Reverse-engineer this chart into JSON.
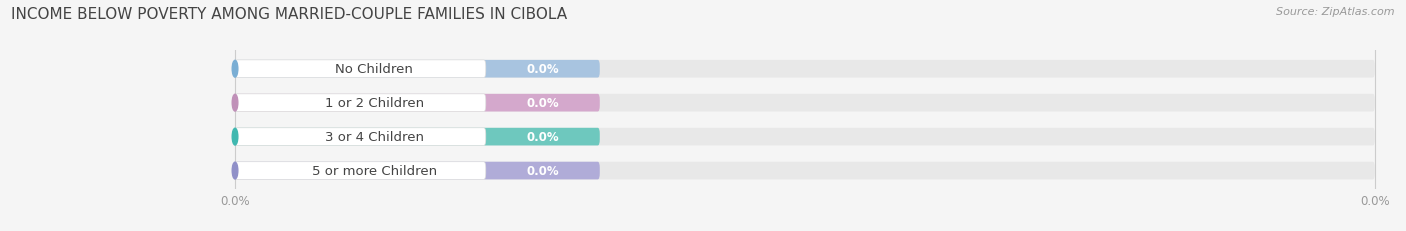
{
  "title": "INCOME BELOW POVERTY AMONG MARRIED-COUPLE FAMILIES IN CIBOLA",
  "source": "Source: ZipAtlas.com",
  "categories": [
    "No Children",
    "1 or 2 Children",
    "3 or 4 Children",
    "5 or more Children"
  ],
  "values": [
    0.0,
    0.0,
    0.0,
    0.0
  ],
  "bar_colors": [
    "#a8c4e0",
    "#d4a8cc",
    "#6ec8be",
    "#b0acd8"
  ],
  "circle_colors": [
    "#7aaed4",
    "#c090b8",
    "#40b8b0",
    "#9090c8"
  ],
  "label_bg_color": "#f8f8f8",
  "bg_color": "#f5f5f5",
  "bar_bg_color": "#e8e8e8",
  "title_color": "#444444",
  "tick_label_color": "#999999",
  "title_fontsize": 11,
  "label_fontsize": 9.5,
  "value_fontsize": 8.5,
  "source_fontsize": 8
}
